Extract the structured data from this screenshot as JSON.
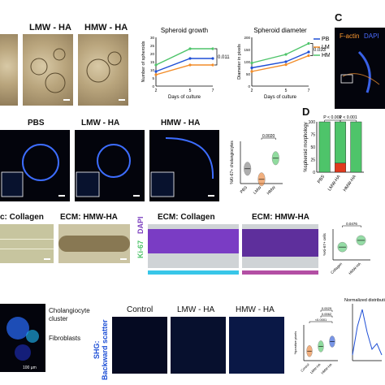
{
  "panel_letters": {
    "c": "C",
    "d": "D",
    "c_partial": "c",
    "c_right": "C"
  },
  "row_a": {
    "labels": [
      "LMW - HA",
      "HMW - HA"
    ],
    "growth_chart_title": "Spheroid growth",
    "diameter_chart_title": "Spheroid diameter",
    "legend": [
      "PBS",
      "LMW",
      "HMW"
    ],
    "legend_colors": [
      "#1f4fd6",
      "#f28c28",
      "#4ec46a"
    ]
  },
  "row_b": {
    "labels": [
      "PBS",
      "LMW - HA",
      "HMW - HA"
    ]
  },
  "panel_c_top": {
    "label_factin": "F-actin",
    "label_dapi": "DAPI"
  },
  "row_c": {
    "left_label": "c: Collagen",
    "right_label": "ECM: HMW-HA",
    "ecm_collagen": "ECM: Collagen",
    "ecm_hmw": "ECM: HMW-HA",
    "stain_ki67": "Ki-67",
    "stain_dapi": "DAPI"
  },
  "row_d": {
    "chol_label": "Cholangiocyte\ncluster",
    "fibro_label": "Fibroblasts",
    "scale_text": "100 µm",
    "shg_label": "SHG:",
    "backward_label": "Backward scatter",
    "titles": [
      "Control",
      "LMW - HA",
      "HMW - HA"
    ]
  },
  "chart_data": [
    {
      "type": "line",
      "title": "Spheroid growth",
      "xlabel": "Days of culture",
      "ylabel": "Number of spheroids",
      "x": [
        2,
        5,
        7
      ],
      "xticks": [
        "2",
        "5",
        "7"
      ],
      "yticks": [
        "0",
        "5",
        "10",
        "15",
        "20",
        "25",
        "30"
      ],
      "ylim": [
        0,
        30
      ],
      "series": [
        {
          "name": "PBS",
          "values": [
            9,
            17,
            17
          ],
          "color": "#1f4fd6"
        },
        {
          "name": "LMW",
          "values": [
            7,
            13,
            13
          ],
          "color": "#f28c28"
        },
        {
          "name": "HMW",
          "values": [
            13,
            23,
            23
          ],
          "color": "#4ec46a"
        }
      ],
      "annotation": "0.011"
    },
    {
      "type": "line",
      "title": "Spheroid diameter",
      "xlabel": "Days of culture",
      "ylabel": "Diameter in pixels",
      "x": [
        2,
        5,
        7
      ],
      "xticks": [
        "2",
        "5",
        "7"
      ],
      "yticks": [
        "0",
        "50",
        "100",
        "150",
        "200"
      ],
      "ylim": [
        0,
        200
      ],
      "series": [
        {
          "name": "PBS",
          "values": [
            75,
            100,
            140
          ],
          "color": "#1f4fd6"
        },
        {
          "name": "LMW",
          "values": [
            60,
            88,
            125
          ],
          "color": "#f28c28"
        },
        {
          "name": "HMW",
          "values": [
            95,
            130,
            175
          ],
          "color": "#4ec46a"
        }
      ],
      "annotation": "0.033"
    },
    {
      "type": "violin",
      "ylabel": "%Ki-67+ cholangiocytes",
      "categories": [
        "PBS",
        "LMW",
        "HMW"
      ],
      "values": [
        7,
        2,
        12
      ],
      "colors": [
        "#7a7a7a",
        "#e87b2a",
        "#48c45e"
      ],
      "annotation": "0.0020"
    },
    {
      "type": "bar",
      "ylabel": "%spheroid morphology",
      "categories": [
        "PBS",
        "LMW-HA",
        "HMW-HA"
      ],
      "yticks": [
        "0",
        "25",
        "50",
        "75",
        "100"
      ],
      "ylim": [
        0,
        100
      ],
      "series": [
        {
          "values": [
            100,
            82,
            100
          ],
          "color": "#4ec46a"
        },
        {
          "values": [
            0,
            18,
            0
          ],
          "color": "#e03a1e"
        }
      ],
      "annotations": [
        "P < 0.001",
        "P < 0.001"
      ]
    },
    {
      "type": "violin",
      "ylabel": "%Ki-67+ cells",
      "categories": [
        "Collagen",
        "HMW-HA"
      ],
      "values": [
        25,
        38
      ],
      "colors": [
        "#4ec46a",
        "#4ec46a"
      ],
      "annotation": "0.0476"
    },
    {
      "type": "violin",
      "ylabel": "%positive pixels",
      "categories": [
        "Control",
        "LMW-HA",
        "HMW-HA"
      ],
      "values": [
        8,
        12,
        16
      ],
      "colors": [
        "#e87b2a",
        "#48c45e",
        "#1f4fd6"
      ],
      "annotations": [
        "<0.0001",
        "0.0062",
        "0.0029"
      ]
    },
    {
      "type": "line",
      "ylabel": "Normalized distribution",
      "series": [
        {
          "values": [
            0.1,
            0.6,
            0.9,
            0.5,
            0.2,
            0.3,
            0.1
          ]
        }
      ]
    }
  ]
}
